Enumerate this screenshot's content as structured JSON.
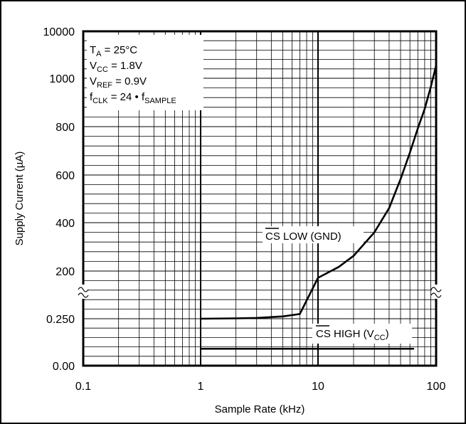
{
  "chart_data": {
    "type": "line",
    "title": "",
    "xlabel": "Sample Rate (kHz)",
    "ylabel": "Supply Current (µA)",
    "x_scale": "log",
    "xlim": [
      0.1,
      100
    ],
    "x_ticks": [
      {
        "value": 0.1,
        "label": "0.1"
      },
      {
        "value": 1,
        "label": "1"
      },
      {
        "value": 10,
        "label": "10"
      },
      {
        "value": 100,
        "label": "100"
      }
    ],
    "y_axis_note": "broken axis: lower segment 0.00–0.250, upper segment 200–1000",
    "y_ticks": [
      "0.00",
      "0.250",
      "200",
      "400",
      "600",
      "800",
      "1000",
      "10000"
    ],
    "grid": true,
    "conditions": [
      {
        "main": "T",
        "sub": "A",
        "rest": " = 25°C"
      },
      {
        "main": "V",
        "sub": "CC",
        "rest": " = 1.8V"
      },
      {
        "main": "V",
        "sub": "REF",
        "rest": " = 0.9V"
      },
      {
        "main": "f",
        "sub": "CLK",
        "rest": " = 24 • f",
        "sub2": "SAMPLE"
      }
    ],
    "series": [
      {
        "name": "CS LOW (GND)",
        "label_over": "CS",
        "label_rest": " LOW (GND)",
        "x": [
          1,
          2,
          3,
          5,
          7,
          10,
          15,
          20,
          30,
          40,
          50,
          60,
          70,
          80,
          90,
          100
        ],
        "y": [
          0.25,
          0.252,
          0.254,
          0.262,
          0.275,
          0.0,
          0.0,
          0.0,
          0.0,
          0.0,
          0.0,
          0.0,
          0.0,
          0.0,
          0.0,
          0.0
        ],
        "y_upper": [
          null,
          null,
          null,
          null,
          null,
          172,
          217,
          263,
          360,
          460,
          580,
          690,
          790,
          870,
          960,
          1050
        ]
      },
      {
        "name": "CS HIGH (VCC)",
        "label_over": "CS",
        "label_rest": " HIGH (V",
        "label_sub": "CC",
        "label_end": ")",
        "x": [
          1,
          65
        ],
        "y": [
          0.09,
          0.09
        ]
      }
    ]
  }
}
